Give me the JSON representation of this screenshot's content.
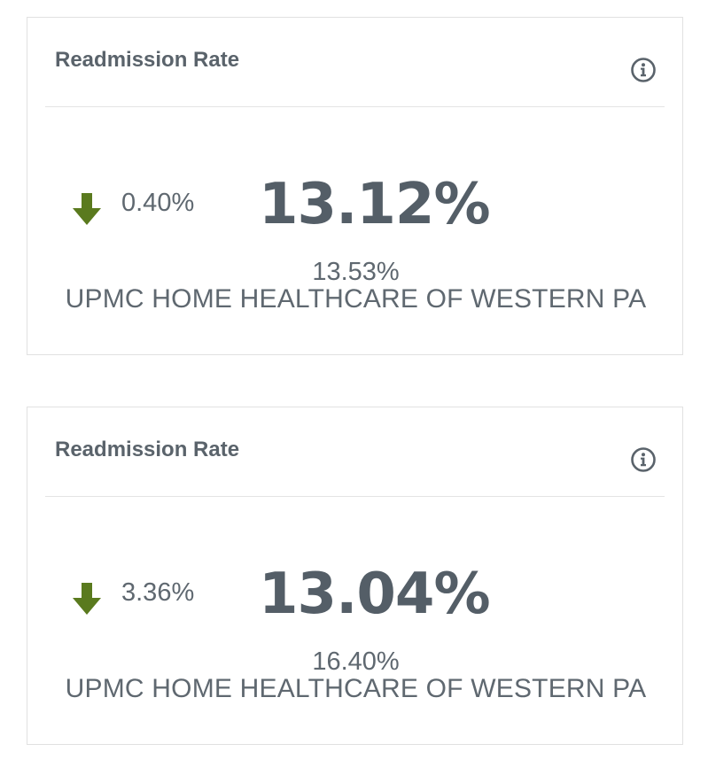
{
  "cards": [
    {
      "title": "Readmission Rate",
      "info_icon": "info-circle-icon",
      "trend_icon": "arrow-down-icon",
      "trend_color": "#5a7a1e",
      "change": "0.40%",
      "value": "13.12%",
      "comparison": "13.53%",
      "organization": "UPMC HOME HEALTHCARE OF WESTERN PA"
    },
    {
      "title": "Readmission Rate",
      "info_icon": "info-circle-icon",
      "trend_icon": "arrow-down-icon",
      "trend_color": "#5a7a1e",
      "change": "3.36%",
      "value": "13.04%",
      "comparison": "16.40%",
      "organization": "UPMC HOME HEALTHCARE OF WESTERN PA"
    }
  ]
}
